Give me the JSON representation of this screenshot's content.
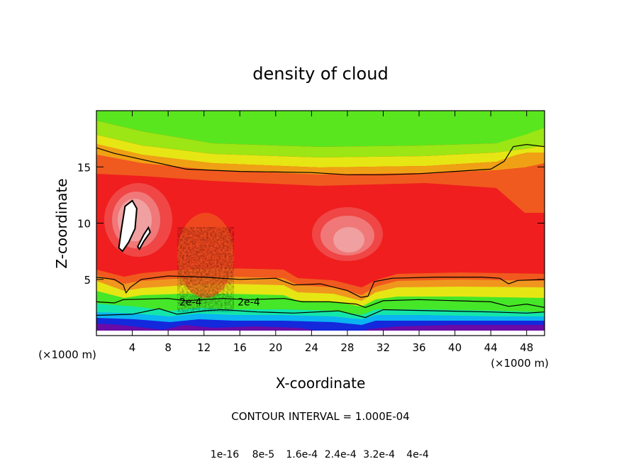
{
  "chart_data": {
    "type": "heatmap",
    "title": "density of cloud",
    "xlabel": "X-coordinate",
    "ylabel": "Z-coordinate",
    "x_unit_left": "(×1000 m)",
    "x_unit_right": "(×1000 m)",
    "xlim": [
      0,
      50
    ],
    "ylim": [
      0,
      20
    ],
    "xticks": [
      4,
      8,
      12,
      16,
      20,
      24,
      28,
      32,
      36,
      40,
      44,
      48
    ],
    "yticks": [
      5,
      10,
      15
    ],
    "contour_interval_text": "CONTOUR INTERVAL = 1.000E-04",
    "contour_labels": [
      {
        "text": "2e-4",
        "x": 17.0,
        "z": 3.0
      },
      {
        "text": "2e-4",
        "x": 10.5,
        "z": 3.0
      }
    ],
    "contours": [
      {
        "name": "upper-envelope",
        "points": [
          [
            0,
            16.7
          ],
          [
            2,
            16.2
          ],
          [
            6,
            15.5
          ],
          [
            10,
            14.8
          ],
          [
            16,
            14.6
          ],
          [
            24,
            14.5
          ],
          [
            28,
            14.3
          ],
          [
            32,
            14.3
          ],
          [
            36,
            14.4
          ],
          [
            40,
            14.6
          ],
          [
            44,
            14.8
          ],
          [
            45.5,
            15.5
          ],
          [
            46.5,
            16.8
          ],
          [
            48,
            17
          ],
          [
            50,
            16.8
          ]
        ]
      },
      {
        "name": "lower-envelope",
        "points": [
          [
            0,
            5.2
          ],
          [
            2,
            5.0
          ],
          [
            3,
            4.5
          ],
          [
            3.3,
            3.8
          ],
          [
            3.8,
            4.3
          ],
          [
            5,
            5.0
          ],
          [
            8,
            5.3
          ],
          [
            12,
            5.2
          ],
          [
            16,
            5.0
          ],
          [
            20,
            5.1
          ],
          [
            22,
            4.5
          ],
          [
            25,
            4.6
          ],
          [
            28,
            4.0
          ],
          [
            29.5,
            3.4
          ],
          [
            30.3,
            3.5
          ],
          [
            31,
            4.8
          ],
          [
            33,
            5.1
          ],
          [
            38,
            5.2
          ],
          [
            43,
            5.2
          ],
          [
            45,
            5.1
          ],
          [
            46,
            4.6
          ],
          [
            47,
            4.9
          ],
          [
            50,
            5.0
          ]
        ]
      },
      {
        "name": "contour-2e-4",
        "points": [
          [
            0,
            3.0
          ],
          [
            2,
            2.9
          ],
          [
            3,
            3.2
          ],
          [
            8,
            3.3
          ],
          [
            10,
            3.1
          ],
          [
            14,
            3.3
          ],
          [
            17,
            3.2
          ],
          [
            21,
            3.3
          ],
          [
            23,
            3.0
          ],
          [
            26,
            3.0
          ],
          [
            29,
            2.8
          ],
          [
            30,
            2.5
          ],
          [
            32,
            3.1
          ],
          [
            36,
            3.2
          ],
          [
            44,
            3.0
          ],
          [
            46,
            2.6
          ],
          [
            48,
            2.8
          ],
          [
            50,
            2.5
          ]
        ]
      },
      {
        "name": "contour-1e-4",
        "points": [
          [
            0,
            1.8
          ],
          [
            4,
            1.9
          ],
          [
            7,
            2.4
          ],
          [
            9,
            1.9
          ],
          [
            12,
            2.2
          ],
          [
            14,
            2.3
          ],
          [
            18,
            2.1
          ],
          [
            22,
            2.0
          ],
          [
            27,
            2.2
          ],
          [
            30,
            1.6
          ],
          [
            32,
            2.3
          ],
          [
            38,
            2.2
          ],
          [
            44,
            2.1
          ],
          [
            48,
            2.0
          ],
          [
            50,
            2.1
          ]
        ]
      }
    ],
    "zero_regions": [
      {
        "name": "hole-main",
        "points": [
          [
            2.5,
            7.8
          ],
          [
            2.8,
            9.5
          ],
          [
            3.2,
            11.5
          ],
          [
            4.0,
            12.0
          ],
          [
            4.5,
            11.3
          ],
          [
            4.3,
            9.5
          ],
          [
            3.6,
            8.3
          ],
          [
            2.9,
            7.5
          ]
        ]
      },
      {
        "name": "hole-small",
        "points": [
          [
            4.6,
            7.9
          ],
          [
            5.3,
            9.0
          ],
          [
            5.8,
            9.6
          ],
          [
            6.0,
            9.2
          ],
          [
            5.3,
            8.4
          ],
          [
            4.8,
            7.7
          ]
        ]
      }
    ],
    "colorbar": {
      "colors": [
        "#6a0aa8",
        "#4a14b8",
        "#2d1ecc",
        "#1428dc",
        "#0a3cf0",
        "#0a5af0",
        "#0a82f0",
        "#0aa8f0",
        "#0ac8e6",
        "#0adcc8",
        "#14e6aa",
        "#1ee682",
        "#28e65a",
        "#46e628",
        "#6ee614",
        "#96e614",
        "#bee614",
        "#e6e614",
        "#f0d20a",
        "#f0b40a",
        "#f09614",
        "#f0781e",
        "#f05a1e",
        "#f03c1e",
        "#f01e1e",
        "#f04646",
        "#f07878",
        "#f0a0a0"
      ],
      "tick_labels": [
        "1e-16",
        "8e-5",
        "1.6e-4",
        "2.4e-4",
        "3.2e-4",
        "4e-4"
      ]
    }
  }
}
